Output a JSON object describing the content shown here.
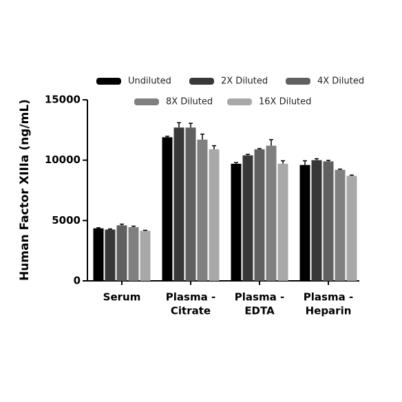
{
  "chart_data": {
    "type": "bar",
    "y_label": "Human Factor XIIIa (ng/mL)",
    "categories": [
      [
        "Serum"
      ],
      [
        "Plasma -",
        "Citrate"
      ],
      [
        "Plasma -",
        "EDTA"
      ],
      [
        "Plasma -",
        "Heparin"
      ]
    ],
    "series": [
      {
        "name": "Undiluted",
        "color": "#000000",
        "values": [
          4350,
          11900,
          9700,
          9600
        ],
        "errors": [
          50,
          80,
          100,
          350
        ]
      },
      {
        "name": "2X Diluted",
        "color": "#383838",
        "values": [
          4250,
          12700,
          10400,
          10000
        ],
        "errors": [
          50,
          400,
          80,
          120
        ]
      },
      {
        "name": "4X Diluted",
        "color": "#606060",
        "values": [
          4600,
          12700,
          10900,
          9900
        ],
        "errors": [
          100,
          350,
          60,
          80
        ]
      },
      {
        "name": "8X Diluted",
        "color": "#808080",
        "values": [
          4450,
          11700,
          11200,
          9200
        ],
        "errors": [
          80,
          450,
          500,
          60
        ]
      },
      {
        "name": "16X Diluted",
        "color": "#a8a8a8",
        "values": [
          4150,
          10900,
          9700,
          8700
        ],
        "errors": [
          40,
          300,
          250,
          60
        ]
      }
    ],
    "ylim": [
      0,
      15000
    ],
    "yticks": [
      0,
      5000,
      10000,
      15000
    ]
  }
}
